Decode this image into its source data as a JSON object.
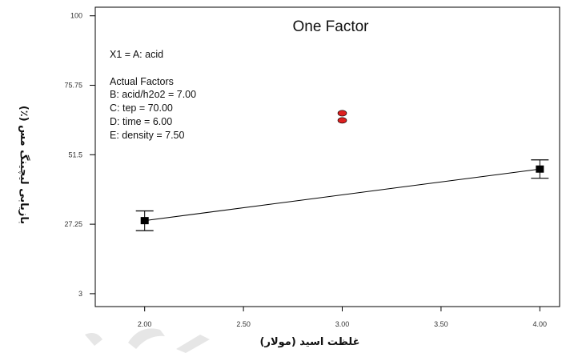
{
  "chart_data": {
    "type": "line",
    "title": "One Factor",
    "xlabel": "غلظت اسید (مولار)",
    "ylabel": "بازیابی لیچینگ مس (٪)",
    "xlim": [
      1.75,
      4.1
    ],
    "ylim": [
      -1.5,
      103
    ],
    "x_ticks": [
      "2.00",
      "2.50",
      "3.00",
      "3.50",
      "4.00"
    ],
    "y_ticks": [
      "3",
      "27.25",
      "51.5",
      "75.75",
      "100"
    ],
    "grid": false,
    "annotations": [
      "X1 = A: acid",
      "Actual Factors",
      "B: acid/h2o2 = 7.00",
      "C: tep = 70.00",
      "D: time = 6.00",
      "E: density = 7.50"
    ],
    "series": [
      {
        "kind": "fit-line",
        "x": [
          2.0,
          4.0
        ],
        "y": [
          28.5,
          46.5
        ],
        "points": [
          {
            "x": 2.0,
            "y": 28.5,
            "ci_low": 25.0,
            "ci_high": 31.9
          },
          {
            "x": 4.0,
            "y": 46.5,
            "ci_low": 43.3,
            "ci_high": 49.7
          }
        ]
      },
      {
        "kind": "design-points",
        "x": [
          3.0,
          3.0
        ],
        "y": [
          66.0,
          63.5
        ]
      }
    ],
    "colors": {
      "fit": "#000000",
      "design_points": "#dd2020"
    }
  }
}
